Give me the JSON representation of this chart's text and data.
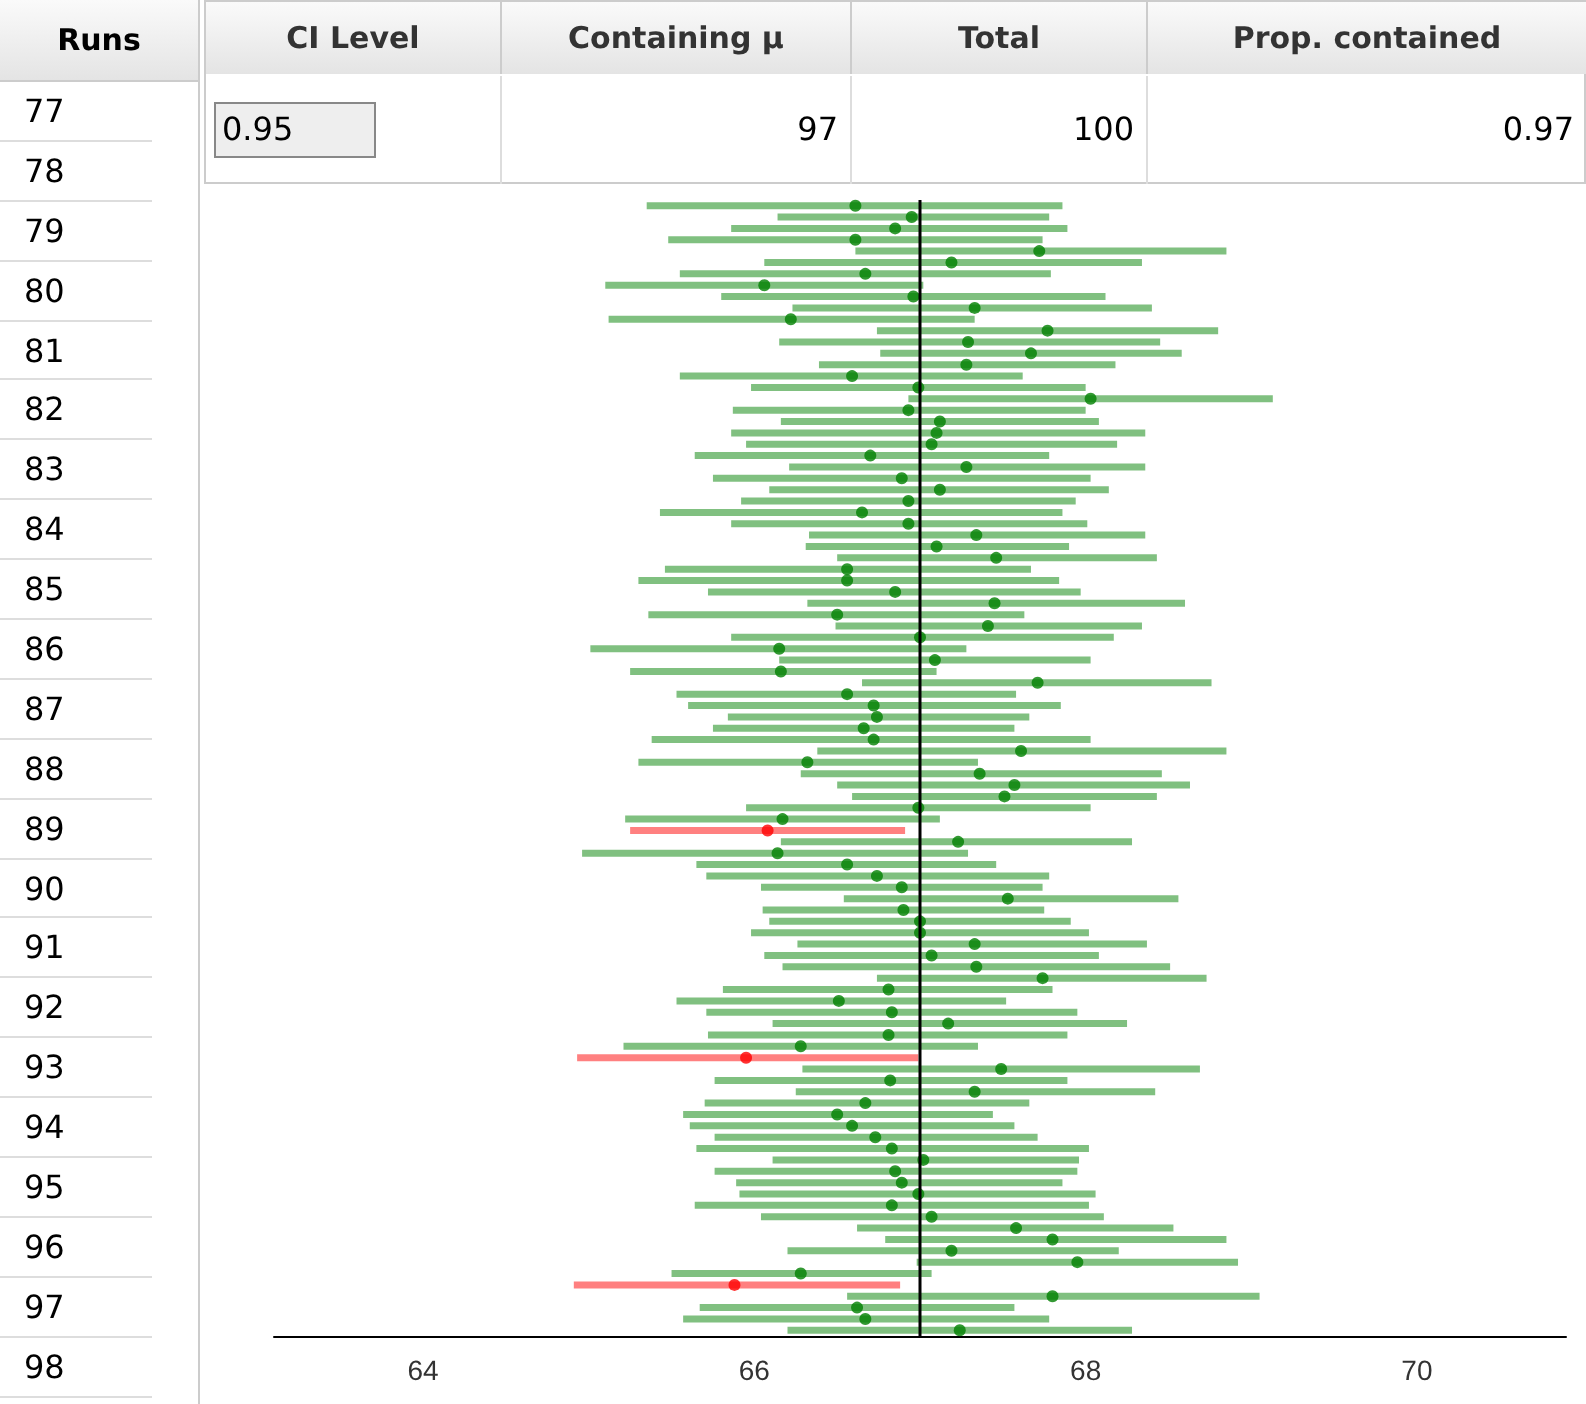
{
  "chart_data": {
    "type": "bar",
    "orientation": "horizontal",
    "marker": "circle",
    "grid": false,
    "tick_labels": "x",
    "categories": [
      null,
      null,
      null,
      null,
      null,
      null,
      null,
      null,
      null,
      null,
      null,
      null,
      null,
      null,
      null,
      null,
      null,
      null,
      null,
      null,
      null,
      null,
      null,
      null,
      null,
      null,
      null,
      null,
      null,
      null,
      null,
      null,
      null,
      null,
      null,
      null,
      null,
      null,
      null,
      null,
      null,
      null,
      null,
      null,
      null,
      null,
      null,
      null,
      null,
      null,
      null,
      null,
      null,
      null,
      null,
      null,
      null,
      null,
      null,
      null,
      null,
      null,
      null,
      null,
      null,
      null,
      null,
      null,
      null,
      null,
      null,
      null,
      null,
      null,
      null,
      null,
      null,
      null,
      null,
      null,
      null,
      null,
      null,
      null,
      null,
      null,
      null,
      null,
      null,
      null,
      null,
      null,
      null,
      null,
      null,
      null,
      null,
      null,
      null,
      null
    ],
    "series": [
      {
        "base": [
          65.35,
          66.14,
          65.86,
          65.48,
          66.61,
          66.06,
          65.55,
          65.1,
          65.8,
          66.23,
          65.12,
          66.74,
          66.15,
          66.76,
          66.39,
          65.55,
          65.98,
          66.93,
          65.87,
          66.16,
          65.86,
          65.95,
          65.64,
          66.21,
          65.75,
          66.09,
          65.92,
          65.43,
          65.86,
          66.33,
          66.31,
          66.5,
          65.46,
          65.3,
          65.72,
          66.32,
          65.36,
          66.49,
          65.86,
          65.01,
          66.15,
          65.25,
          66.65,
          65.53,
          65.6,
          65.84,
          65.75,
          65.38,
          66.38,
          65.3,
          66.28,
          66.5,
          66.59,
          65.95,
          65.22,
          65.25,
          66.16,
          64.96,
          65.65,
          65.71,
          66.04,
          66.54,
          66.05,
          66.09,
          65.98,
          66.26,
          66.06,
          66.17,
          66.74,
          65.81,
          65.53,
          65.71,
          66.11,
          65.72,
          65.21,
          64.93,
          66.29,
          65.76,
          66.25,
          65.7,
          65.57,
          65.61,
          65.76,
          65.65,
          66.11,
          65.76,
          65.89,
          65.91,
          65.64,
          66.04,
          66.62,
          66.79,
          66.2,
          66.98,
          65.5,
          64.91,
          66.56,
          65.67,
          65.57,
          66.2
        ],
        "values": [
          2.51,
          1.64,
          2.03,
          2.26,
          2.24,
          2.28,
          2.24,
          1.92,
          2.32,
          2.17,
          2.21,
          2.06,
          2.3,
          1.82,
          1.79,
          2.07,
          2.02,
          2.2,
          2.13,
          1.92,
          2.5,
          2.24,
          2.14,
          2.15,
          2.28,
          2.05,
          2.02,
          2.43,
          2.15,
          2.03,
          1.59,
          1.93,
          2.21,
          2.54,
          2.25,
          2.28,
          2.27,
          1.85,
          2.31,
          2.27,
          1.88,
          1.85,
          2.11,
          2.05,
          2.25,
          1.82,
          1.82,
          2.65,
          2.47,
          2.05,
          2.18,
          2.13,
          1.84,
          2.08,
          1.9,
          1.66,
          2.12,
          2.33,
          1.81,
          2.07,
          1.7,
          2.02,
          1.7,
          1.82,
          2.04,
          2.11,
          2.02,
          2.34,
          1.99,
          1.99,
          1.99,
          2.24,
          2.14,
          2.17,
          2.14,
          2.06,
          2.4,
          2.13,
          2.17,
          1.96,
          1.87,
          1.96,
          1.95,
          2.37,
          1.85,
          2.19,
          1.97,
          2.15,
          2.38,
          2.07,
          1.91,
          2.06,
          2.0,
          1.94,
          1.57,
          1.97,
          2.49,
          1.9,
          2.21,
          2.08
        ],
        "colors": [
          "#80c080",
          "#80c080",
          "#80c080",
          "#80c080",
          "#80c080",
          "#80c080",
          "#80c080",
          "#80c080",
          "#80c080",
          "#80c080",
          "#80c080",
          "#80c080",
          "#80c080",
          "#80c080",
          "#80c080",
          "#80c080",
          "#80c080",
          "#80c080",
          "#80c080",
          "#80c080",
          "#80c080",
          "#80c080",
          "#80c080",
          "#80c080",
          "#80c080",
          "#80c080",
          "#80c080",
          "#80c080",
          "#80c080",
          "#80c080",
          "#80c080",
          "#80c080",
          "#80c080",
          "#80c080",
          "#80c080",
          "#80c080",
          "#80c080",
          "#80c080",
          "#80c080",
          "#80c080",
          "#80c080",
          "#80c080",
          "#80c080",
          "#80c080",
          "#80c080",
          "#80c080",
          "#80c080",
          "#80c080",
          "#80c080",
          "#80c080",
          "#80c080",
          "#80c080",
          "#80c080",
          "#80c080",
          "#80c080",
          "#ff8080",
          "#80c080",
          "#80c080",
          "#80c080",
          "#80c080",
          "#80c080",
          "#80c080",
          "#80c080",
          "#80c080",
          "#80c080",
          "#80c080",
          "#80c080",
          "#80c080",
          "#80c080",
          "#80c080",
          "#80c080",
          "#80c080",
          "#80c080",
          "#80c080",
          "#80c080",
          "#ff8080",
          "#80c080",
          "#80c080",
          "#80c080",
          "#80c080",
          "#80c080",
          "#80c080",
          "#80c080",
          "#80c080",
          "#80c080",
          "#80c080",
          "#80c080",
          "#80c080",
          "#80c080",
          "#80c080",
          "#80c080",
          "#80c080",
          "#80c080",
          "#80c080",
          "#80c080",
          "#ff8080",
          "#80c080",
          "#80c080",
          "#80c080",
          "#80c080"
        ]
      },
      {
        "type": "scatter",
        "values": [
          66.61,
          66.95,
          66.85,
          66.61,
          67.72,
          67.19,
          66.67,
          66.06,
          66.96,
          67.33,
          66.22,
          67.77,
          67.29,
          67.67,
          67.28,
          66.59,
          66.99,
          68.03,
          66.93,
          67.12,
          67.1,
          67.07,
          66.7,
          67.28,
          66.89,
          67.12,
          66.93,
          66.65,
          66.93,
          67.34,
          67.1,
          67.46,
          66.56,
          66.56,
          66.85,
          67.45,
          66.5,
          67.41,
          67.0,
          66.15,
          67.09,
          66.16,
          67.71,
          66.56,
          66.72,
          66.74,
          66.66,
          66.72,
          67.61,
          66.32,
          67.36,
          67.57,
          67.51,
          66.99,
          66.17,
          66.08,
          67.23,
          66.14,
          66.56,
          66.74,
          66.89,
          67.53,
          66.9,
          67.0,
          67.0,
          67.33,
          67.07,
          67.34,
          67.74,
          66.81,
          66.51,
          66.83,
          67.17,
          66.81,
          66.28,
          65.95,
          67.49,
          66.82,
          67.33,
          66.67,
          66.5,
          66.59,
          66.73,
          66.83,
          67.02,
          66.85,
          66.89,
          66.99,
          66.83,
          67.07,
          67.58,
          67.8,
          67.19,
          67.95,
          66.28,
          65.88,
          67.8,
          66.62,
          66.67,
          67.24
        ],
        "colors": [
          "#008000",
          "#008000",
          "#008000",
          "#008000",
          "#008000",
          "#008000",
          "#008000",
          "#008000",
          "#008000",
          "#008000",
          "#008000",
          "#008000",
          "#008000",
          "#008000",
          "#008000",
          "#008000",
          "#008000",
          "#008000",
          "#008000",
          "#008000",
          "#008000",
          "#008000",
          "#008000",
          "#008000",
          "#008000",
          "#008000",
          "#008000",
          "#008000",
          "#008000",
          "#008000",
          "#008000",
          "#008000",
          "#008000",
          "#008000",
          "#008000",
          "#008000",
          "#008000",
          "#008000",
          "#008000",
          "#008000",
          "#008000",
          "#008000",
          "#008000",
          "#008000",
          "#008000",
          "#008000",
          "#008000",
          "#008000",
          "#008000",
          "#008000",
          "#008000",
          "#008000",
          "#008000",
          "#008000",
          "#008000",
          "#ff0000",
          "#008000",
          "#008000",
          "#008000",
          "#008000",
          "#008000",
          "#008000",
          "#008000",
          "#008000",
          "#008000",
          "#008000",
          "#008000",
          "#008000",
          "#008000",
          "#008000",
          "#008000",
          "#008000",
          "#008000",
          "#008000",
          "#008000",
          "#ff0000",
          "#008000",
          "#008000",
          "#008000",
          "#008000",
          "#008000",
          "#008000",
          "#008000",
          "#008000",
          "#008000",
          "#008000",
          "#008000",
          "#008000",
          "#008000",
          "#008000",
          "#008000",
          "#008000",
          "#008000",
          "#008000",
          "#008000",
          "#ff0000",
          "#008000",
          "#008000",
          "#008000",
          "#008000"
        ]
      }
    ],
    "xlim": [
      63.1,
      70.9
    ],
    "xticks": [
      64,
      66,
      68,
      70
    ],
    "ref_lines": [
      {
        "axis": "x",
        "value": 67,
        "color": "#000000"
      }
    ],
    "annotations": [
      "CI Level",
      "Containing μ",
      "Total",
      "Prop. contained",
      "0.95",
      "97",
      "100",
      "0.97",
      "Runs",
      "77",
      "78",
      "79",
      "80",
      "81",
      "82",
      "83",
      "84",
      "85",
      "86",
      "87",
      "88",
      "89",
      "90",
      "91",
      "92",
      "93",
      "94",
      "95",
      "96",
      "97",
      "98"
    ]
  }
}
